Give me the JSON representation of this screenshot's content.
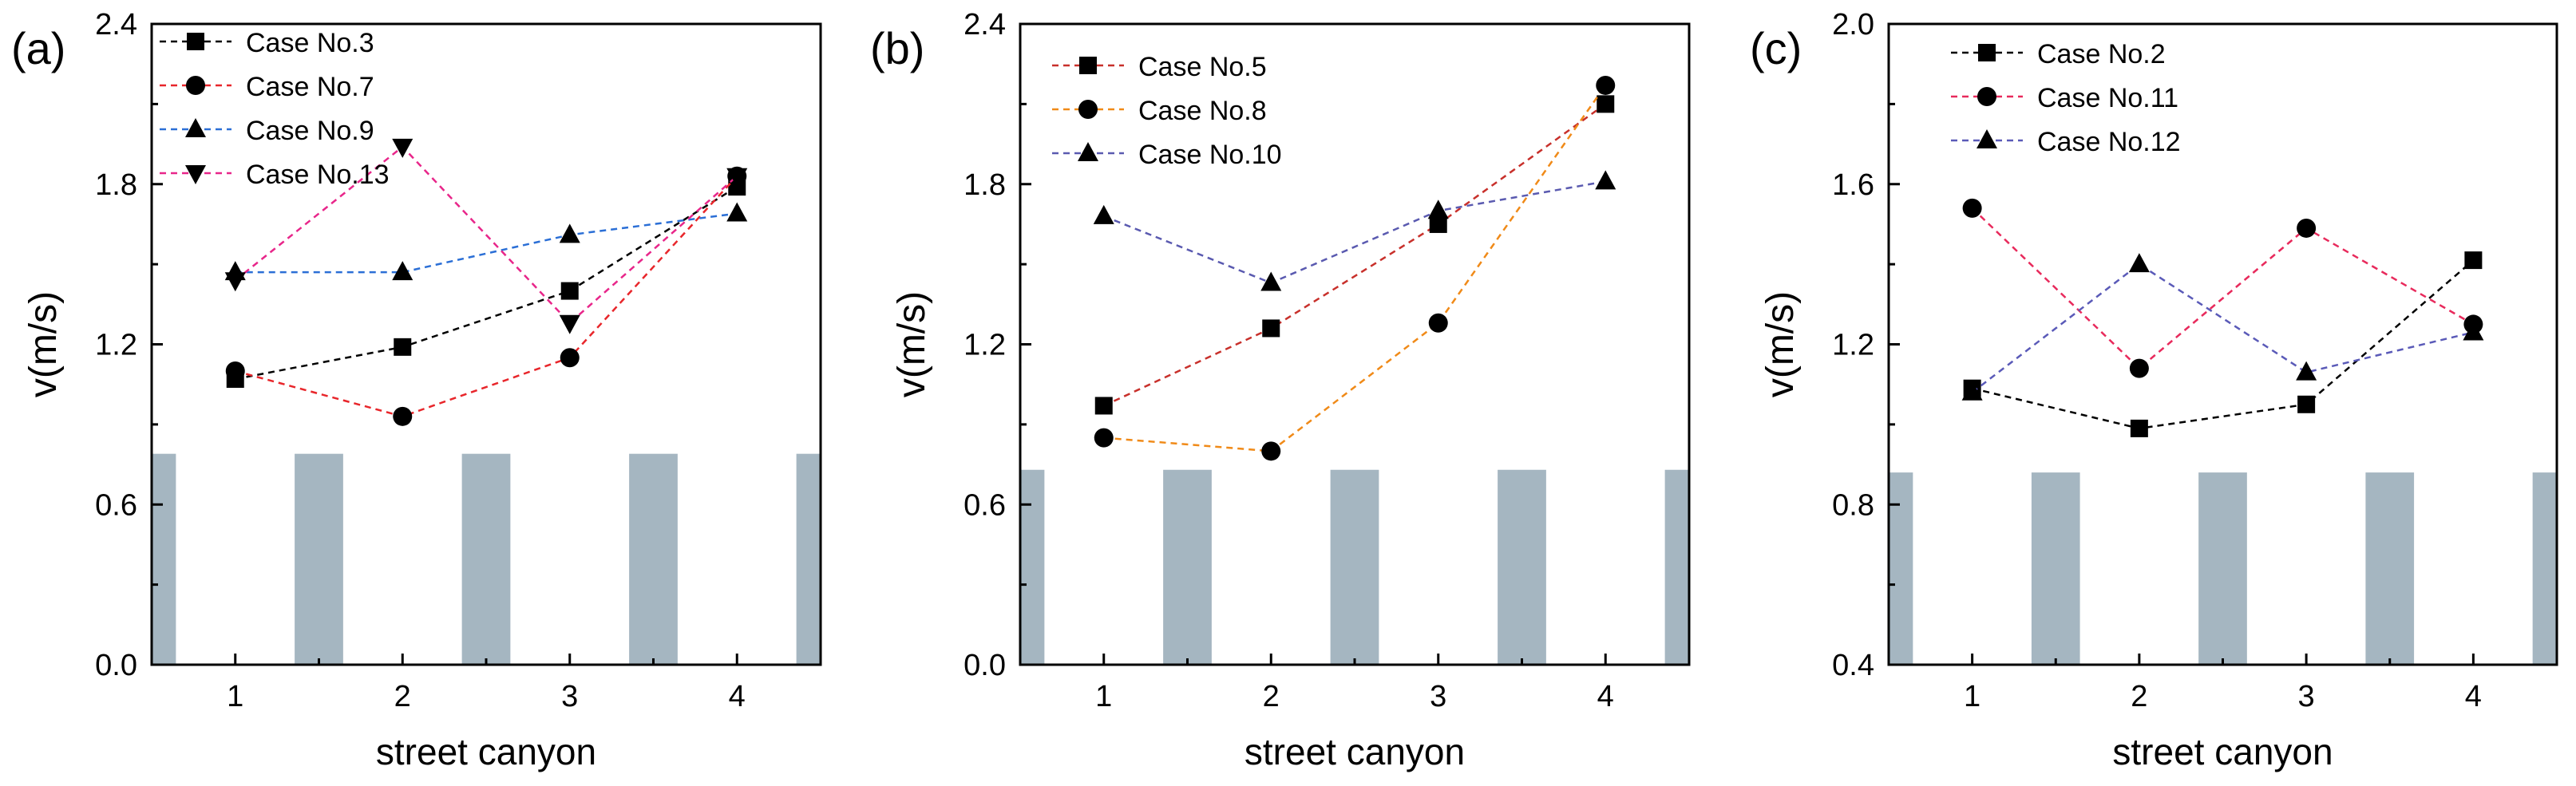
{
  "figure": {
    "x_label": "street canyon",
    "y_label": "v(m/s)"
  },
  "chart_data": [
    {
      "type": "line",
      "panel_label": "(a)",
      "xlabel": "street canyon",
      "ylabel": "v(m/s)",
      "categories": [
        1,
        2,
        3,
        4
      ],
      "xlim": [
        0.5,
        4.5
      ],
      "ylim": [
        0.0,
        2.4
      ],
      "yticks": [
        "0.0",
        "0.6",
        "1.2",
        "1.8",
        "2.4"
      ],
      "xticks": [
        "1",
        "2",
        "3",
        "4"
      ],
      "building_level": 0.79,
      "legend_position": "top-left",
      "series": [
        {
          "name": "Case No.3",
          "color": "#000000",
          "marker": "square",
          "values": [
            1.07,
            1.19,
            1.4,
            1.79
          ]
        },
        {
          "name": "Case No.7",
          "color": "#e8262b",
          "marker": "circle",
          "values": [
            1.1,
            0.93,
            1.15,
            1.83
          ]
        },
        {
          "name": "Case No.9",
          "color": "#2b6fd6",
          "marker": "triangle-up",
          "values": [
            1.47,
            1.47,
            1.61,
            1.69
          ]
        },
        {
          "name": "Case No.13",
          "color": "#e8268a",
          "marker": "triangle-down",
          "values": [
            1.44,
            1.94,
            1.28,
            1.83
          ]
        }
      ]
    },
    {
      "type": "line",
      "panel_label": "(b)",
      "xlabel": "street canyon",
      "ylabel": "v(m/s)",
      "categories": [
        1,
        2,
        3,
        4
      ],
      "xlim": [
        0.5,
        4.5
      ],
      "ylim": [
        0.0,
        2.4
      ],
      "yticks": [
        "0.0",
        "0.6",
        "1.2",
        "1.8",
        "2.4"
      ],
      "xticks": [
        "1",
        "2",
        "3",
        "4"
      ],
      "building_level": 0.73,
      "legend_position": "top-left",
      "series": [
        {
          "name": "Case No.5",
          "color": "#c8302b",
          "marker": "square",
          "values": [
            0.97,
            1.26,
            1.65,
            2.1
          ]
        },
        {
          "name": "Case No.8",
          "color": "#f08a18",
          "marker": "circle",
          "values": [
            0.85,
            0.8,
            1.28,
            2.17
          ]
        },
        {
          "name": "Case No.10",
          "color": "#5a5ab0",
          "marker": "triangle-up",
          "values": [
            1.68,
            1.43,
            1.7,
            1.81
          ]
        }
      ]
    },
    {
      "type": "line",
      "panel_label": "(c)",
      "xlabel": "street canyon",
      "ylabel": "v(m/s)",
      "categories": [
        1,
        2,
        3,
        4
      ],
      "xlim": [
        0.5,
        4.5
      ],
      "ylim": [
        0.4,
        2.0
      ],
      "yticks": [
        "0.4",
        "0.8",
        "1.2",
        "1.6",
        "2.0"
      ],
      "xticks": [
        "1",
        "2",
        "3",
        "4"
      ],
      "building_level": 0.88,
      "legend_position": "top-left",
      "series": [
        {
          "name": "Case No.2",
          "color": "#000000",
          "marker": "square",
          "values": [
            1.09,
            0.99,
            1.05,
            1.41
          ]
        },
        {
          "name": "Case No.11",
          "color": "#e82a5c",
          "marker": "circle",
          "values": [
            1.54,
            1.14,
            1.49,
            1.25
          ]
        },
        {
          "name": "Case No.12",
          "color": "#5a5ab8",
          "marker": "triangle-up",
          "values": [
            1.08,
            1.4,
            1.13,
            1.23
          ]
        }
      ]
    }
  ]
}
